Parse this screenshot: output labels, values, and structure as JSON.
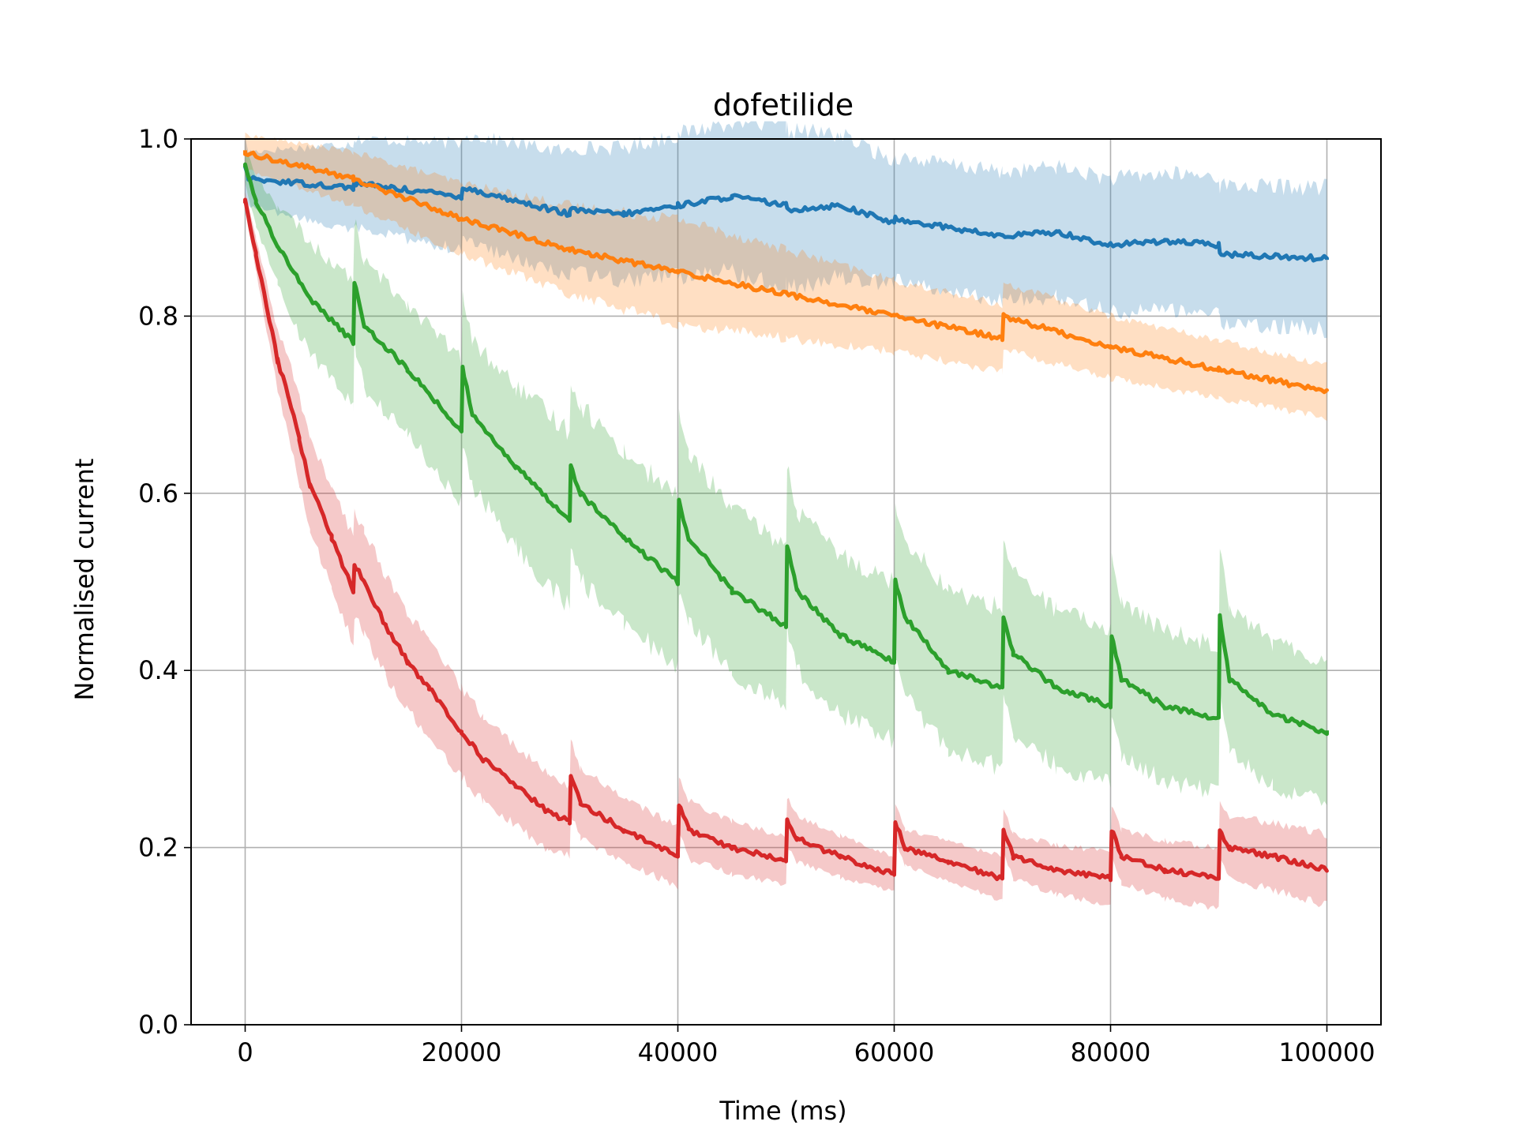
{
  "chart_data": {
    "type": "line",
    "title": "dofetilide",
    "xlabel": "Time (ms)",
    "ylabel": "Normalised current",
    "xlim": [
      -5000,
      105000
    ],
    "ylim": [
      0.0,
      1.0
    ],
    "xticks": [
      0,
      20000,
      40000,
      60000,
      80000,
      100000
    ],
    "xtick_labels": [
      "0",
      "20000",
      "40000",
      "60000",
      "80000",
      "100000"
    ],
    "yticks": [
      0.0,
      0.2,
      0.4,
      0.6,
      0.8,
      1.0
    ],
    "ytick_labels": [
      "0.0",
      "0.2",
      "0.4",
      "0.6",
      "0.8",
      "1.0"
    ],
    "grid": true,
    "legend": "none",
    "series": [
      {
        "color": "#1f77b4",
        "band_opacity": 0.25,
        "points": [
          [
            0,
            0.97
          ],
          [
            300,
            0.955
          ],
          [
            10000,
            0.945
          ],
          [
            10100,
            0.95
          ],
          [
            20000,
            0.935
          ],
          [
            20100,
            0.945
          ],
          [
            30000,
            0.915
          ],
          [
            30100,
            0.92
          ],
          [
            35000,
            0.915
          ],
          [
            40000,
            0.925
          ],
          [
            45000,
            0.935
          ],
          [
            50000,
            0.925
          ],
          [
            50100,
            0.92
          ],
          [
            55000,
            0.925
          ],
          [
            60000,
            0.905
          ],
          [
            60100,
            0.91
          ],
          [
            70000,
            0.89
          ],
          [
            75000,
            0.895
          ],
          [
            80000,
            0.88
          ],
          [
            85000,
            0.885
          ],
          [
            90000,
            0.88
          ],
          [
            90100,
            0.87
          ],
          [
            100000,
            0.865
          ]
        ],
        "band_halfwidth": [
          [
            0,
            0.03
          ],
          [
            10000,
            0.05
          ],
          [
            30000,
            0.07
          ],
          [
            50000,
            0.09
          ],
          [
            60000,
            0.07
          ],
          [
            100000,
            0.08
          ]
        ]
      },
      {
        "color": "#ff7f0e",
        "band_opacity": 0.25,
        "points": [
          [
            0,
            0.985
          ],
          [
            10000,
            0.955
          ],
          [
            20000,
            0.91
          ],
          [
            30000,
            0.875
          ],
          [
            40000,
            0.85
          ],
          [
            50000,
            0.825
          ],
          [
            60000,
            0.8
          ],
          [
            70000,
            0.775
          ],
          [
            70100,
            0.8
          ],
          [
            80000,
            0.765
          ],
          [
            90000,
            0.74
          ],
          [
            100000,
            0.715
          ]
        ],
        "band_halfwidth": [
          [
            0,
            0.02
          ],
          [
            20000,
            0.04
          ],
          [
            40000,
            0.06
          ],
          [
            60000,
            0.04
          ],
          [
            100000,
            0.03
          ]
        ]
      },
      {
        "color": "#2ca02c",
        "band_opacity": 0.25,
        "points": [
          [
            0,
            0.97
          ],
          [
            1000,
            0.93
          ],
          [
            3000,
            0.88
          ],
          [
            6000,
            0.82
          ],
          [
            10000,
            0.77
          ],
          [
            10100,
            0.84
          ],
          [
            11000,
            0.79
          ],
          [
            15000,
            0.74
          ],
          [
            20000,
            0.67
          ],
          [
            20100,
            0.74
          ],
          [
            21000,
            0.69
          ],
          [
            25000,
            0.63
          ],
          [
            30000,
            0.57
          ],
          [
            30100,
            0.63
          ],
          [
            31000,
            0.6
          ],
          [
            35000,
            0.55
          ],
          [
            40000,
            0.5
          ],
          [
            40100,
            0.59
          ],
          [
            41000,
            0.55
          ],
          [
            45000,
            0.49
          ],
          [
            50000,
            0.45
          ],
          [
            50100,
            0.54
          ],
          [
            51000,
            0.49
          ],
          [
            55000,
            0.44
          ],
          [
            60000,
            0.41
          ],
          [
            60100,
            0.5
          ],
          [
            61000,
            0.46
          ],
          [
            65000,
            0.4
          ],
          [
            70000,
            0.38
          ],
          [
            70100,
            0.46
          ],
          [
            71000,
            0.42
          ],
          [
            75000,
            0.38
          ],
          [
            80000,
            0.36
          ],
          [
            80100,
            0.44
          ],
          [
            81000,
            0.39
          ],
          [
            85000,
            0.36
          ],
          [
            90000,
            0.345
          ],
          [
            90100,
            0.46
          ],
          [
            91000,
            0.39
          ],
          [
            95000,
            0.35
          ],
          [
            100000,
            0.33
          ]
        ],
        "band_halfwidth": [
          [
            0,
            0.02
          ],
          [
            5000,
            0.06
          ],
          [
            10000,
            0.07
          ],
          [
            20000,
            0.08
          ],
          [
            30000,
            0.1
          ],
          [
            50000,
            0.09
          ],
          [
            70000,
            0.09
          ],
          [
            100000,
            0.08
          ]
        ]
      },
      {
        "color": "#d62728",
        "band_opacity": 0.25,
        "points": [
          [
            0,
            0.93
          ],
          [
            1000,
            0.87
          ],
          [
            2000,
            0.81
          ],
          [
            3000,
            0.75
          ],
          [
            4000,
            0.71
          ],
          [
            5000,
            0.66
          ],
          [
            6000,
            0.61
          ],
          [
            8000,
            0.55
          ],
          [
            10000,
            0.49
          ],
          [
            10100,
            0.52
          ],
          [
            11000,
            0.5
          ],
          [
            13000,
            0.45
          ],
          [
            15000,
            0.41
          ],
          [
            17000,
            0.38
          ],
          [
            20000,
            0.33
          ],
          [
            22000,
            0.3
          ],
          [
            25000,
            0.27
          ],
          [
            28000,
            0.24
          ],
          [
            30000,
            0.23
          ],
          [
            30100,
            0.28
          ],
          [
            31000,
            0.25
          ],
          [
            35000,
            0.22
          ],
          [
            40000,
            0.19
          ],
          [
            40100,
            0.25
          ],
          [
            41000,
            0.22
          ],
          [
            45000,
            0.2
          ],
          [
            50000,
            0.185
          ],
          [
            50100,
            0.23
          ],
          [
            51000,
            0.21
          ],
          [
            55000,
            0.19
          ],
          [
            60000,
            0.17
          ],
          [
            60100,
            0.23
          ],
          [
            61000,
            0.2
          ],
          [
            65000,
            0.185
          ],
          [
            70000,
            0.165
          ],
          [
            70100,
            0.22
          ],
          [
            71000,
            0.19
          ],
          [
            75000,
            0.175
          ],
          [
            80000,
            0.165
          ],
          [
            80100,
            0.22
          ],
          [
            81000,
            0.19
          ],
          [
            85000,
            0.175
          ],
          [
            90000,
            0.165
          ],
          [
            90100,
            0.22
          ],
          [
            91000,
            0.2
          ],
          [
            95000,
            0.19
          ],
          [
            100000,
            0.175
          ]
        ],
        "band_halfwidth": [
          [
            0,
            0.01
          ],
          [
            5000,
            0.05
          ],
          [
            10000,
            0.06
          ],
          [
            20000,
            0.05
          ],
          [
            30000,
            0.04
          ],
          [
            60000,
            0.02
          ],
          [
            100000,
            0.04
          ]
        ]
      }
    ]
  }
}
